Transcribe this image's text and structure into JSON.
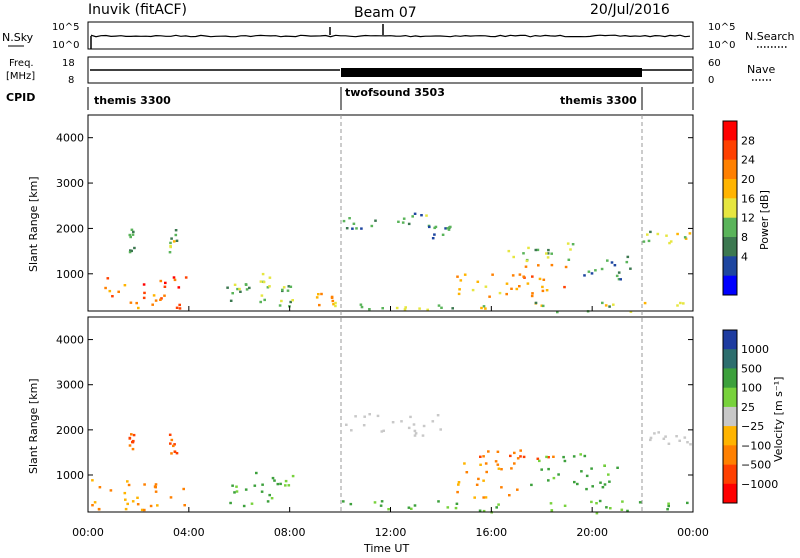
{
  "header": {
    "station": "Inuvik (fitACF)",
    "beam": "Beam 07",
    "date": "20/Jul/2016"
  },
  "nsky_panel": {
    "left_label": "N.Sky",
    "left_ticks": [
      "10^5",
      "10^0"
    ],
    "right_label": "N.Search",
    "right_ticks": [
      "10^5",
      "10^0"
    ]
  },
  "freq_panel": {
    "left_label_line1": "Freq.",
    "left_label_line2": "[MHz]",
    "left_ticks": [
      "18",
      "8"
    ],
    "right_label": "Nave",
    "right_ticks": [
      "60",
      "0"
    ]
  },
  "cpid": {
    "label": "CPID",
    "segments": [
      {
        "name": "themis 3300",
        "start_hour": 0,
        "end_hour": 10
      },
      {
        "name": "twofsound 3503",
        "start_hour": 10,
        "end_hour": 22
      },
      {
        "name": "themis 3300",
        "start_hour": 22,
        "end_hour": 24
      }
    ]
  },
  "x_axis": {
    "label": "Time UT",
    "ticks": [
      "00:00",
      "04:00",
      "08:00",
      "12:00",
      "16:00",
      "20:00",
      "00:00"
    ],
    "range_hours": [
      0,
      24
    ]
  },
  "power_panel": {
    "ylabel": "Slant Range [km]",
    "yticks": [
      "4000",
      "3000",
      "2000",
      "1000"
    ],
    "colorbar_label": "Power [dB]",
    "colorbar_ticks": [
      "28",
      "24",
      "20",
      "16",
      "12",
      "8",
      "4"
    ],
    "colors": [
      "#ff0000",
      "#ff4000",
      "#ff8000",
      "#ffb400",
      "#e6e640",
      "#5ab45a",
      "#3c7850",
      "#1e46a0",
      "#0000ff"
    ]
  },
  "velocity_panel": {
    "ylabel": "Slant Range [km]",
    "yticks": [
      "4000",
      "3000",
      "2000",
      "1000"
    ],
    "colorbar_label": "Velocity [m s⁻¹]",
    "colorbar_ticks": [
      "1000",
      "500",
      "100",
      "25",
      "−25",
      "−100",
      "−500",
      "−1000"
    ],
    "colors": [
      "#1e3ca0",
      "#2d6e6e",
      "#3ca03c",
      "#78d23c",
      "#c8c8c8",
      "#ffb400",
      "#ff8000",
      "#ff4000",
      "#ff0000"
    ]
  },
  "chart_data": [
    {
      "type": "heatmap",
      "title": "Power",
      "xlabel": "Time UT",
      "ylabel": "Slant Range [km]",
      "xlim": [
        0,
        24
      ],
      "ylim": [
        180,
        4500
      ],
      "colorbar": {
        "label": "Power [dB]",
        "ticks": [
          4,
          8,
          12,
          16,
          20,
          24,
          28
        ],
        "range": [
          0,
          30
        ]
      },
      "regions": [
        {
          "t": [
            0,
            3.9
          ],
          "r": [
            250,
            950
          ],
          "dB": 24
        },
        {
          "t": [
            1.6,
            1.8
          ],
          "r": [
            1500,
            2000
          ],
          "dB": 12
        },
        {
          "t": [
            3.2,
            3.5
          ],
          "r": [
            1500,
            2000
          ],
          "dB": 12
        },
        {
          "t": [
            5.2,
            6.4
          ],
          "r": [
            400,
            800
          ],
          "dB": 10
        },
        {
          "t": [
            6.8,
            7.2
          ],
          "r": [
            300,
            1100
          ],
          "dB": 12
        },
        {
          "t": [
            7.5,
            8.2
          ],
          "r": [
            300,
            900
          ],
          "dB": 10
        },
        {
          "t": [
            9.0,
            9.8
          ],
          "r": [
            300,
            600
          ],
          "dB": 18
        },
        {
          "t": [
            10.0,
            13.5
          ],
          "r": [
            2000,
            2400
          ],
          "dB": 10
        },
        {
          "t": [
            13.0,
            14.5
          ],
          "r": [
            1800,
            2100
          ],
          "dB": 8
        },
        {
          "t": [
            14.5,
            19.0
          ],
          "r": [
            500,
            1300
          ],
          "dB": 20
        },
        {
          "t": [
            16.5,
            19.5
          ],
          "r": [
            1300,
            1700
          ],
          "dB": 12
        },
        {
          "t": [
            19.5,
            21.5
          ],
          "r": [
            900,
            1400
          ],
          "dB": 8
        },
        {
          "t": [
            22.0,
            24.0
          ],
          "r": [
            1700,
            2000
          ],
          "dB": 14
        },
        {
          "t": [
            10.0,
            24.0
          ],
          "r": [
            180,
            400
          ],
          "dB": 14
        }
      ]
    },
    {
      "type": "heatmap",
      "title": "Velocity",
      "xlabel": "Time UT",
      "ylabel": "Slant Range [km]",
      "xlim": [
        0,
        24
      ],
      "ylim": [
        180,
        4500
      ],
      "colorbar": {
        "label": "Velocity [m s⁻¹]",
        "ticks": [
          -1000,
          -500,
          -100,
          -25,
          25,
          100,
          500,
          1000
        ]
      },
      "regions": [
        {
          "t": [
            0,
            3.9
          ],
          "r": [
            250,
            950
          ],
          "v": -100
        },
        {
          "t": [
            1.6,
            1.8
          ],
          "r": [
            1500,
            2000
          ],
          "v": -500
        },
        {
          "t": [
            3.2,
            3.5
          ],
          "r": [
            1500,
            2000
          ],
          "v": -500
        },
        {
          "t": [
            5.5,
            8.2
          ],
          "r": [
            300,
            1100
          ],
          "v": 100
        },
        {
          "t": [
            10.0,
            14.0
          ],
          "r": [
            1900,
            2400
          ],
          "v": 0
        },
        {
          "t": [
            14.5,
            17.0
          ],
          "r": [
            500,
            1300
          ],
          "v": -100
        },
        {
          "t": [
            15.5,
            18.5
          ],
          "r": [
            1300,
            1600
          ],
          "v": -500
        },
        {
          "t": [
            17.5,
            21.0
          ],
          "r": [
            700,
            1500
          ],
          "v": 100
        },
        {
          "t": [
            22.0,
            24.0
          ],
          "r": [
            1700,
            2000
          ],
          "v": 0
        },
        {
          "t": [
            10.0,
            24.0
          ],
          "r": [
            180,
            450
          ],
          "v": 100
        }
      ]
    }
  ]
}
